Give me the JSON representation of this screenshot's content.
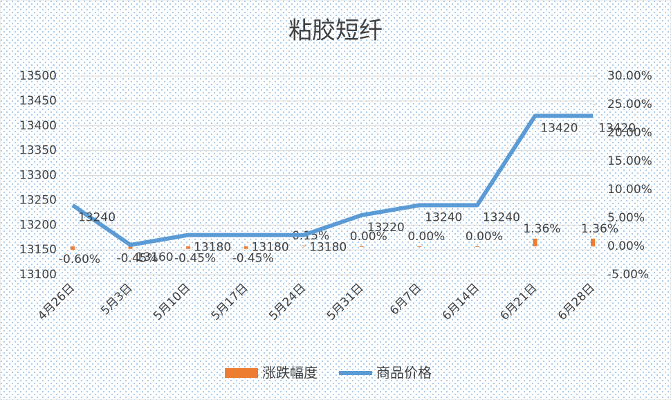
{
  "chart_data": {
    "type": "bar-line",
    "title": "粘胶短纤",
    "categories": [
      "4月26日",
      "5月3日",
      "5月10日",
      "5月17日",
      "5月24日",
      "5月31日",
      "6月7日",
      "6月14日",
      "6月21日",
      "6月28日"
    ],
    "series": [
      {
        "name": "涨跌幅度",
        "type": "bar",
        "axis": "y2",
        "color": "#ed7d31",
        "values": [
          -0.6,
          -0.45,
          -0.45,
          -0.45,
          0.15,
          0.0,
          0.0,
          0.0,
          1.36,
          1.36
        ],
        "value_labels": [
          "-0.60%",
          "-0.45%",
          "-0.45%",
          "-0.45%",
          "0.15%",
          "0.00%",
          "0.00%",
          "0.00%",
          "1.36%",
          "1.36%"
        ]
      },
      {
        "name": "商品价格",
        "type": "line",
        "color": "#5b9bd5",
        "values": [
          13240,
          13160,
          13180,
          13180,
          13180,
          13220,
          13240,
          13240,
          13420,
          13420
        ]
      }
    ],
    "ylim": [
      13100,
      13500
    ],
    "yticks": [
      13100,
      13150,
      13200,
      13250,
      13300,
      13350,
      13400,
      13450,
      13500
    ],
    "y2lim": [
      -5,
      30
    ],
    "y2ticks": [
      {
        "value": -5,
        "label": "-5.00%"
      },
      {
        "value": 0,
        "label": "0.00%"
      },
      {
        "value": 5,
        "label": "5.00%"
      },
      {
        "value": 10,
        "label": "10.00%"
      },
      {
        "value": 15,
        "label": "15.00%"
      },
      {
        "value": 20,
        "label": "20.00%"
      },
      {
        "value": 25,
        "label": "25.00%"
      },
      {
        "value": 30,
        "label": "30.00%"
      }
    ],
    "grid": true
  }
}
